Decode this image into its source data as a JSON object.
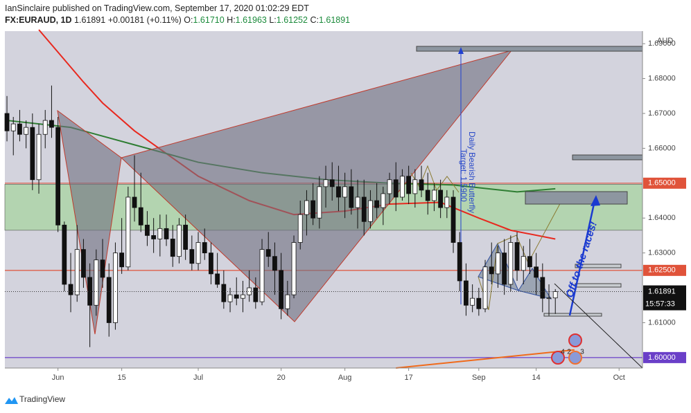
{
  "header": {
    "line1": "IanSinclaire published on TradingView.com, September 17, 2020 01:02:29 EDT",
    "symbol": "FX:EURAUD, 1D",
    "price": "1.61891",
    "change": "+0.00181 (+0.11%)",
    "o_label": "O:",
    "o": "1.61710",
    "h_label": "H:",
    "h": "1.61963",
    "l_label": "L:",
    "l": "1.61252",
    "c_label": "C:",
    "c": "1.61891"
  },
  "chart_data": {
    "type": "candlestick",
    "currency": "AUD",
    "xlim": [
      -0.33,
      99.67
    ],
    "ylim": [
      1.597,
      1.6936
    ],
    "xticks": [
      {
        "value": 8,
        "label": "Jun"
      },
      {
        "value": 18,
        "label": "15"
      },
      {
        "value": 30,
        "label": "Jul"
      },
      {
        "value": 43,
        "label": "20"
      },
      {
        "value": 53,
        "label": "Aug"
      },
      {
        "value": 63,
        "label": "17"
      },
      {
        "value": 74,
        "label": "Sep"
      },
      {
        "value": 83,
        "label": "14"
      },
      {
        "value": 96,
        "label": "Oct"
      }
    ],
    "yticks": [
      {
        "value": 1.61,
        "label": "1.61000"
      },
      {
        "value": 1.63,
        "label": "1.63000"
      },
      {
        "value": 1.64,
        "label": "1.64000"
      },
      {
        "value": 1.66,
        "label": "1.66000"
      },
      {
        "value": 1.67,
        "label": "1.67000"
      },
      {
        "value": 1.68,
        "label": "1.68000"
      },
      {
        "value": 1.69,
        "label": "1.69000"
      }
    ],
    "grid": false,
    "open": [
      1.67,
      1.665,
      1.667,
      1.664,
      1.666,
      1.651,
      1.664,
      1.668,
      1.666,
      1.638,
      1.621,
      1.618,
      1.631,
      1.623,
      1.615,
      1.628,
      1.623,
      1.61,
      1.63,
      1.626,
      1.646,
      1.643,
      1.638,
      1.635,
      1.634,
      1.637,
      1.634,
      1.629,
      1.638,
      1.631,
      1.627,
      1.633,
      1.63,
      1.624,
      1.621,
      1.616,
      1.618,
      1.617,
      1.618,
      1.62,
      1.616,
      1.631,
      1.629,
      1.625,
      1.614,
      1.618,
      1.633,
      1.641,
      1.645,
      1.64,
      1.649,
      1.651,
      1.649,
      1.646,
      1.649,
      1.643,
      1.646,
      1.639,
      1.645,
      1.643,
      1.647,
      1.651,
      1.646,
      1.652,
      1.647,
      1.651,
      1.648,
      1.645,
      1.648,
      1.643,
      1.646,
      1.633,
      1.622,
      1.615,
      1.617,
      1.614,
      1.626,
      1.624,
      1.63,
      1.621,
      1.633,
      1.625,
      1.629,
      1.626,
      1.623,
      1.617,
      1.6171
    ],
    "high": [
      1.675,
      1.669,
      1.671,
      1.668,
      1.67,
      1.667,
      1.671,
      1.678,
      1.669,
      1.639,
      1.63,
      1.638,
      1.634,
      1.627,
      1.631,
      1.634,
      1.627,
      1.633,
      1.64,
      1.649,
      1.658,
      1.653,
      1.642,
      1.64,
      1.641,
      1.641,
      1.638,
      1.64,
      1.641,
      1.635,
      1.636,
      1.637,
      1.633,
      1.63,
      1.625,
      1.62,
      1.623,
      1.622,
      1.625,
      1.623,
      1.634,
      1.636,
      1.633,
      1.63,
      1.622,
      1.635,
      1.645,
      1.648,
      1.65,
      1.652,
      1.655,
      1.656,
      1.655,
      1.653,
      1.654,
      1.651,
      1.651,
      1.648,
      1.65,
      1.649,
      1.653,
      1.656,
      1.654,
      1.655,
      1.654,
      1.655,
      1.653,
      1.65,
      1.651,
      1.648,
      1.648,
      1.636,
      1.627,
      1.621,
      1.62,
      1.628,
      1.633,
      1.632,
      1.634,
      1.635,
      1.636,
      1.632,
      1.634,
      1.63,
      1.627,
      1.621,
      1.61963
    ],
    "low": [
      1.662,
      1.658,
      1.662,
      1.66,
      1.648,
      1.647,
      1.66,
      1.663,
      1.636,
      1.619,
      1.613,
      1.616,
      1.62,
      1.603,
      1.612,
      1.62,
      1.606,
      1.608,
      1.624,
      1.625,
      1.639,
      1.636,
      1.632,
      1.63,
      1.629,
      1.632,
      1.626,
      1.627,
      1.628,
      1.625,
      1.625,
      1.628,
      1.621,
      1.62,
      1.614,
      1.613,
      1.615,
      1.613,
      1.616,
      1.614,
      1.615,
      1.626,
      1.618,
      1.611,
      1.612,
      1.617,
      1.631,
      1.635,
      1.638,
      1.637,
      1.643,
      1.645,
      1.642,
      1.64,
      1.641,
      1.637,
      1.635,
      1.637,
      1.64,
      1.638,
      1.644,
      1.642,
      1.645,
      1.644,
      1.643,
      1.646,
      1.641,
      1.642,
      1.64,
      1.64,
      1.63,
      1.619,
      1.612,
      1.613,
      1.612,
      1.613,
      1.621,
      1.62,
      1.618,
      1.619,
      1.622,
      1.621,
      1.624,
      1.618,
      1.613,
      1.612,
      1.61252
    ],
    "close": [
      1.665,
      1.667,
      1.664,
      1.666,
      1.651,
      1.664,
      1.668,
      1.666,
      1.638,
      1.621,
      1.618,
      1.631,
      1.623,
      1.615,
      1.628,
      1.623,
      1.61,
      1.63,
      1.626,
      1.646,
      1.643,
      1.638,
      1.635,
      1.634,
      1.637,
      1.634,
      1.629,
      1.638,
      1.631,
      1.627,
      1.633,
      1.63,
      1.624,
      1.621,
      1.616,
      1.618,
      1.617,
      1.618,
      1.62,
      1.616,
      1.631,
      1.629,
      1.625,
      1.614,
      1.618,
      1.633,
      1.641,
      1.645,
      1.64,
      1.649,
      1.651,
      1.649,
      1.646,
      1.649,
      1.643,
      1.646,
      1.639,
      1.645,
      1.643,
      1.647,
      1.651,
      1.646,
      1.652,
      1.647,
      1.651,
      1.648,
      1.645,
      1.648,
      1.643,
      1.646,
      1.633,
      1.622,
      1.615,
      1.617,
      1.614,
      1.626,
      1.624,
      1.63,
      1.621,
      1.633,
      1.625,
      1.629,
      1.626,
      1.623,
      1.617,
      1.6171,
      1.61891
    ],
    "indicators": [
      {
        "color": "#e8281e",
        "x": [
          5,
          12,
          15,
          20,
          30,
          38,
          45,
          53,
          60,
          68,
          74,
          79,
          86
        ],
        "values": [
          1.694,
          1.679,
          1.673,
          1.665,
          1.652,
          1.645,
          1.641,
          1.642,
          1.644,
          1.6445,
          1.64,
          1.6365,
          1.634
        ]
      },
      {
        "color": "#2e7d32",
        "x": [
          0,
          10,
          20,
          30,
          40,
          50,
          60,
          70,
          80,
          86
        ],
        "values": [
          1.668,
          1.666,
          1.661,
          1.656,
          1.653,
          1.651,
          1.65,
          1.6495,
          1.6475,
          1.6484
        ]
      },
      {
        "color": "#f06a1a",
        "x": [
          61,
          89
        ],
        "values": [
          1.597,
          1.6022
        ]
      }
    ],
    "zone": {
      "from": 1.6365,
      "to": 1.6497,
      "color": "#a8d4a0"
    },
    "levels": [
      {
        "value": 1.65,
        "label": "1.65000",
        "color": "#e0533a"
      },
      {
        "value": 1.625,
        "label": "1.62500",
        "color": "#e0533a"
      },
      {
        "value": 1.6,
        "label": "1.60000",
        "color": "#6a3fc8"
      }
    ],
    "last_price": {
      "value": 1.61891,
      "label": "1.61891",
      "time": "15:57:33"
    },
    "annotations": {
      "pattern": "Daily Bearish Butterfly",
      "target": "Target: 1.5900",
      "call": "Off to the races!"
    },
    "badges": [
      "4",
      "2",
      "3"
    ]
  },
  "footer": {
    "brand": "TradingView"
  }
}
